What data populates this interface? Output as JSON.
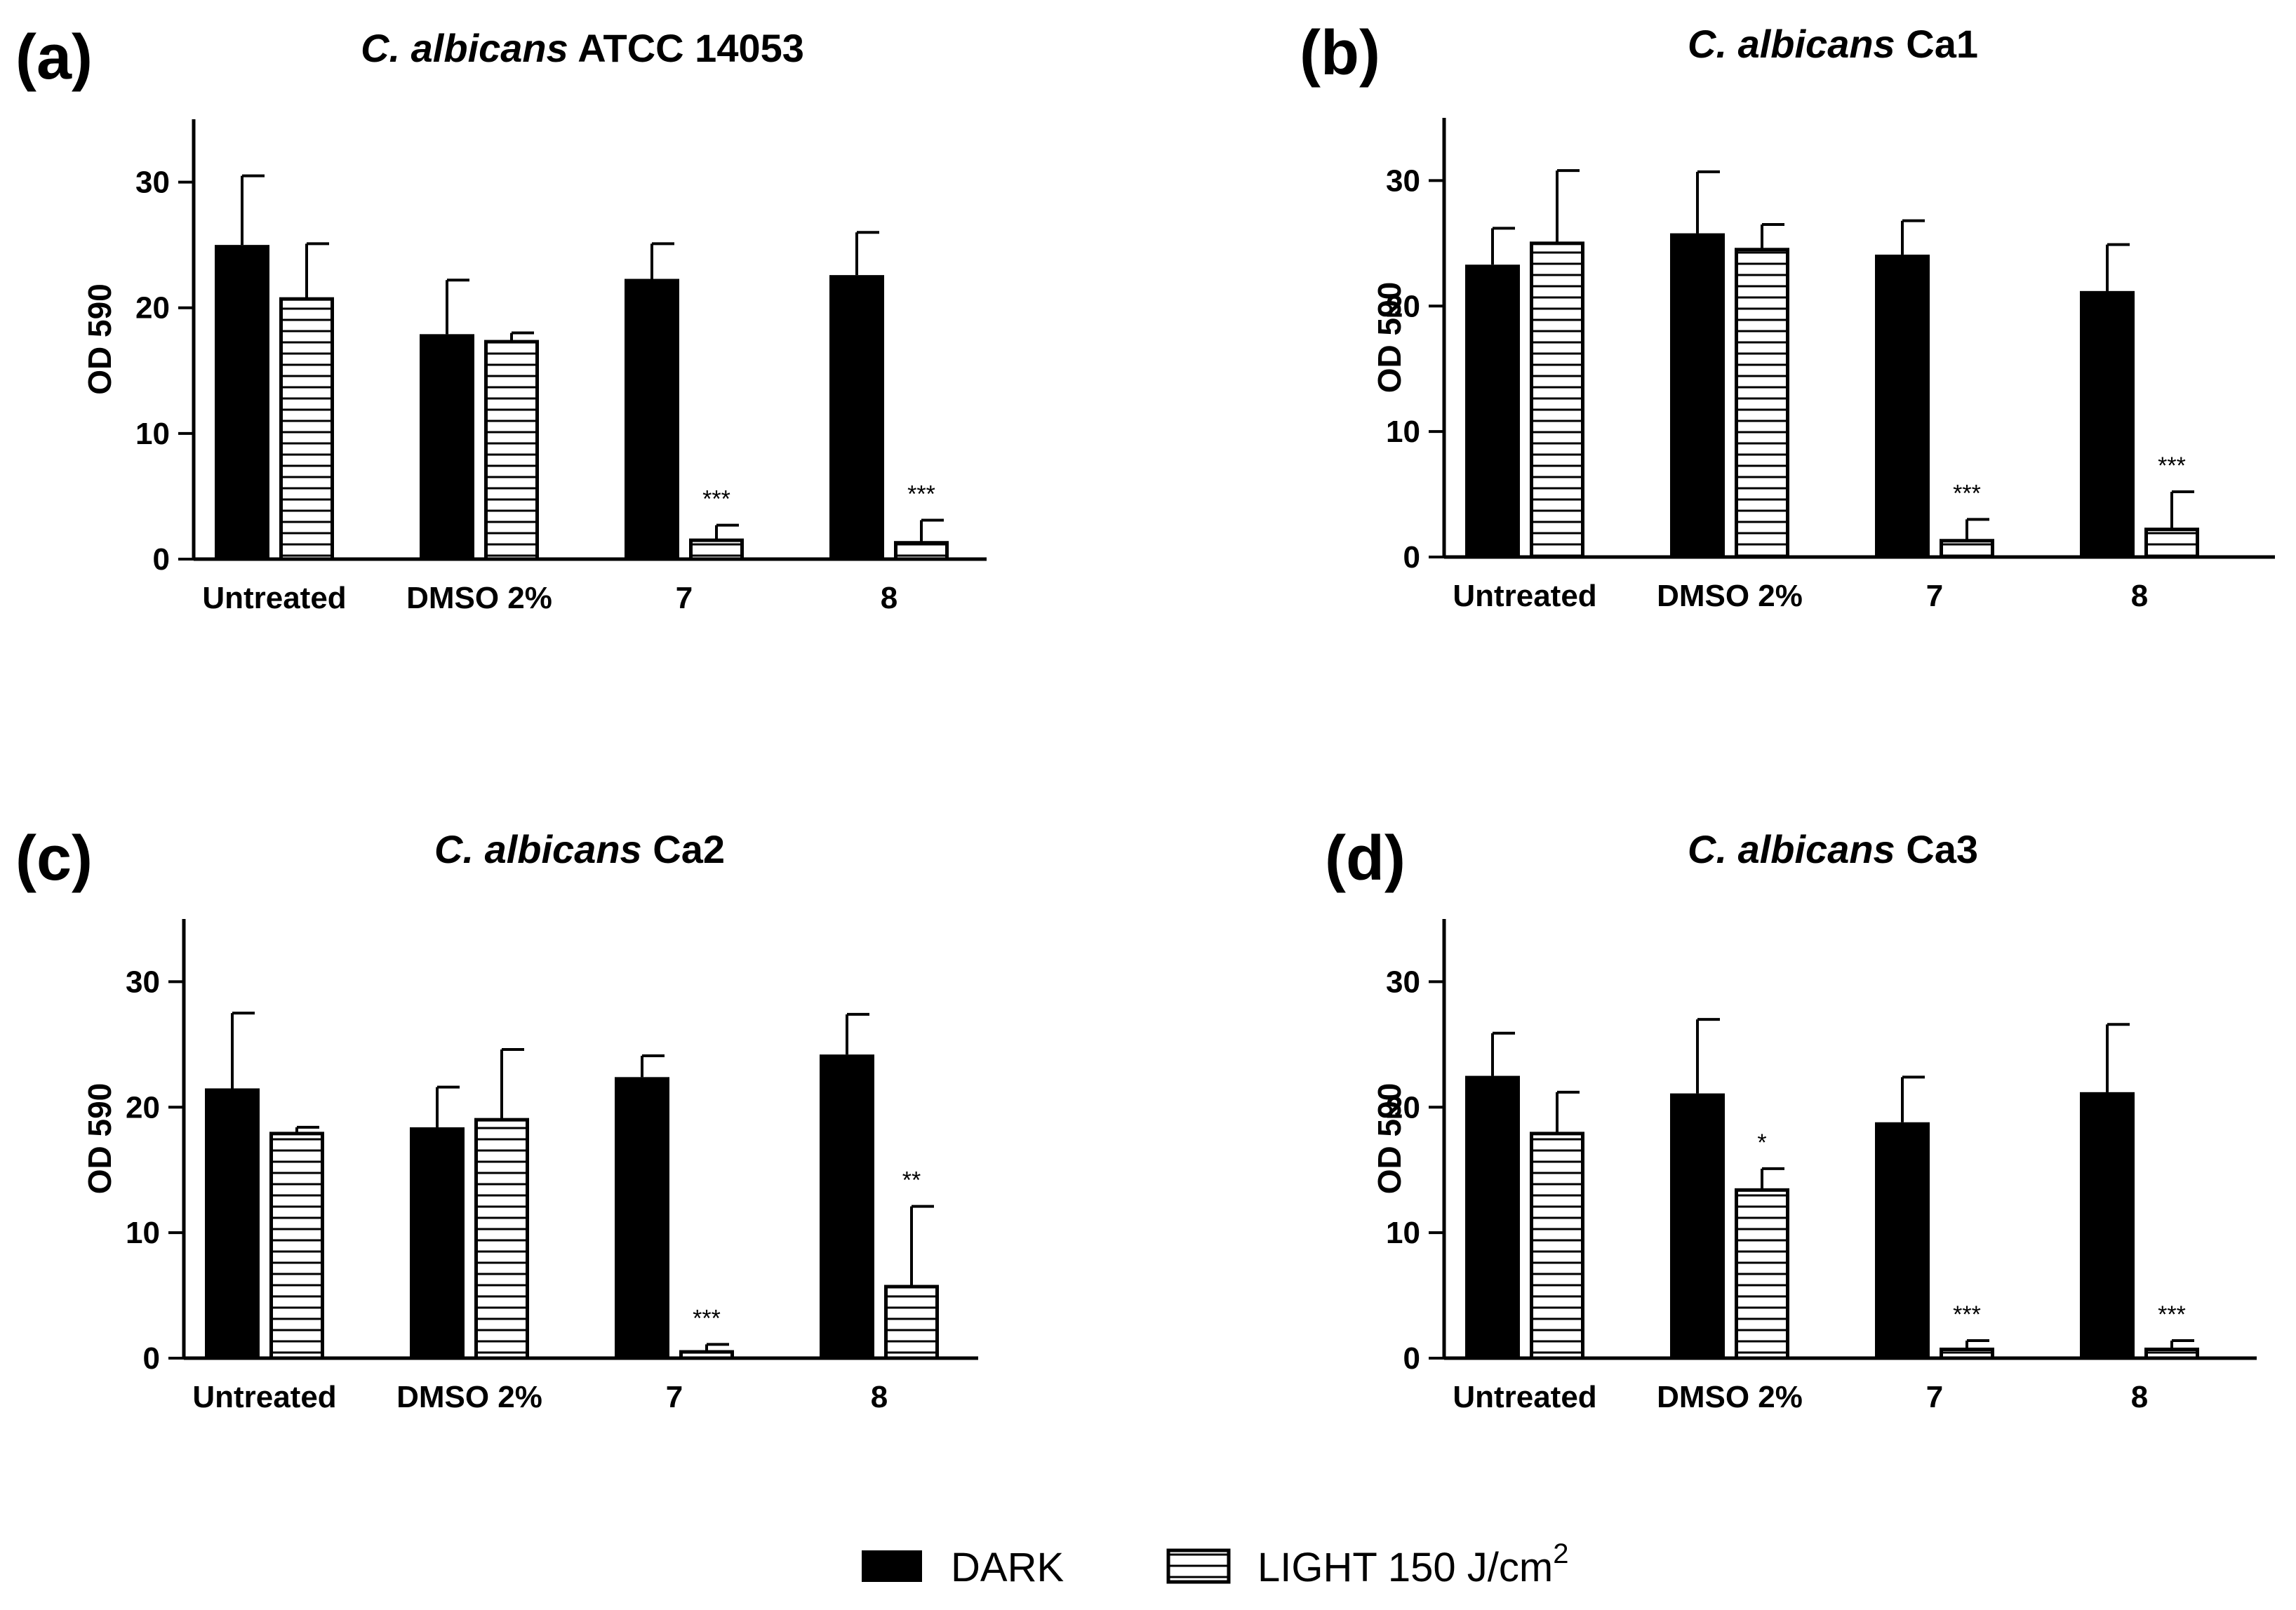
{
  "chart_data": [
    {
      "type": "bar",
      "panel": "(a)",
      "title_italic": "C. albicans",
      "title_rest": " ATCC 14053",
      "ylabel": "OD 590",
      "categories": [
        "Untreated",
        "DMSO 2%",
        "7",
        "8"
      ],
      "ylim": [
        0,
        35
      ],
      "yticks": [
        "0",
        "10",
        "20",
        "30"
      ],
      "series": [
        {
          "name": "DARK",
          "values": [
            25,
            17.9,
            22.3,
            22.6
          ],
          "errors": [
            5.5,
            4.3,
            2.8,
            3.4
          ],
          "sig": [
            "",
            "",
            "",
            ""
          ]
        },
        {
          "name": "LIGHT 150 J/cm2",
          "values": [
            20.7,
            17.3,
            1.5,
            1.3
          ],
          "errors": [
            4.4,
            0.7,
            1.2,
            1.8
          ],
          "sig": [
            "",
            "",
            "***",
            "***"
          ]
        }
      ]
    },
    {
      "type": "bar",
      "panel": "(b)",
      "title_italic": "C. albicans",
      "title_rest": " Ca1",
      "ylabel": "OD 590",
      "categories": [
        "Untreated",
        "DMSO 2%",
        "7",
        "8"
      ],
      "ylim": [
        0,
        35
      ],
      "yticks": [
        "0",
        "10",
        "20",
        "30"
      ],
      "series": [
        {
          "name": "DARK",
          "values": [
            23.3,
            25.8,
            24.1,
            21.2
          ],
          "errors": [
            2.9,
            4.9,
            2.7,
            3.7
          ],
          "sig": [
            "",
            "",
            "",
            ""
          ]
        },
        {
          "name": "LIGHT 150 J/cm2",
          "values": [
            25,
            24.5,
            1.3,
            2.2
          ],
          "errors": [
            5.8,
            2,
            1.7,
            3
          ],
          "sig": [
            "",
            "",
            "***",
            "***"
          ]
        }
      ]
    },
    {
      "type": "bar",
      "panel": "(c)",
      "title_italic": "C. albicans",
      "title_rest": " Ca2",
      "ylabel": "OD 590",
      "categories": [
        "Untreated",
        "DMSO 2%",
        "7",
        "8"
      ],
      "ylim": [
        0,
        35
      ],
      "yticks": [
        "0",
        "10",
        "20",
        "30"
      ],
      "series": [
        {
          "name": "DARK",
          "values": [
            21.5,
            18.4,
            22.4,
            24.2
          ],
          "errors": [
            6,
            3.2,
            1.7,
            3.2
          ],
          "sig": [
            "",
            "",
            "",
            ""
          ]
        },
        {
          "name": "LIGHT 150 J/cm2",
          "values": [
            17.9,
            19,
            0.5,
            5.7
          ],
          "errors": [
            0.5,
            5.6,
            0.6,
            6.4
          ],
          "sig": [
            "",
            "",
            "***",
            "**"
          ]
        }
      ]
    },
    {
      "type": "bar",
      "panel": "(d)",
      "title_italic": "C. albicans",
      "title_rest": " Ca3",
      "ylabel": "OD 590",
      "categories": [
        "Untreated",
        "DMSO 2%",
        "7",
        "8"
      ],
      "ylim": [
        0,
        35
      ],
      "yticks": [
        "0",
        "10",
        "20",
        "30"
      ],
      "series": [
        {
          "name": "DARK",
          "values": [
            22.5,
            21.1,
            18.8,
            21.2
          ],
          "errors": [
            3.4,
            5.9,
            3.6,
            5.4
          ],
          "sig": [
            "",
            "",
            "",
            ""
          ]
        },
        {
          "name": "LIGHT 150 J/cm2",
          "values": [
            17.9,
            13.4,
            0.7,
            0.7
          ],
          "errors": [
            3.3,
            1.7,
            0.7,
            0.7
          ],
          "sig": [
            "",
            "*",
            "***",
            "***"
          ]
        }
      ]
    }
  ],
  "legend": {
    "dark_label": "DARK",
    "light_label": "LIGHT 150 J/cm",
    "light_superscript": "2"
  },
  "colors": {
    "dark_fill": "#000000",
    "light_fill": "#ffffff",
    "stroke": "#000000"
  }
}
